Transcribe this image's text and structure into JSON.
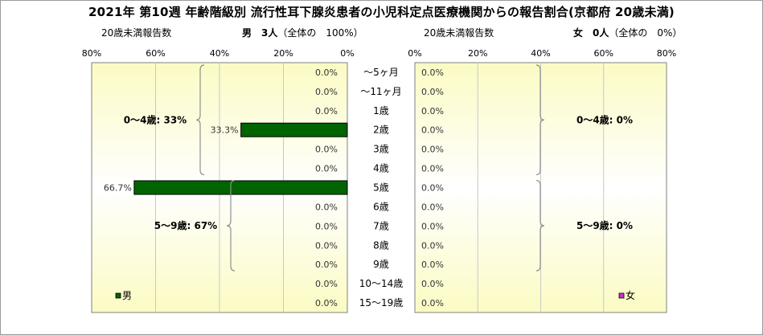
{
  "title": "2021年 第10週 年齢階級別 流行性耳下腺炎患者の小児科定点医療機関からの報告割合(京都府 20歳未満)",
  "male_panel": {
    "subtitle_left": "20歳未満報告数",
    "label": "男　3人",
    "share": "（全体の　100%）"
  },
  "female_panel": {
    "subtitle_left": "20歳未満報告数",
    "label": "女　0人",
    "share": "（全体の　0%）"
  },
  "colors": {
    "male": "#006400",
    "female": "#cc33cc",
    "plot_bg_center": "#ffffff",
    "plot_bg_edge": "#fbfbc4"
  },
  "chart_data": {
    "type": "bar",
    "orientation": "horizontal",
    "categories": [
      "～5ヶ月",
      "～11ヶ月",
      "1歳",
      "2歳",
      "3歳",
      "4歳",
      "5歳",
      "6歳",
      "7歳",
      "8歳",
      "9歳",
      "10～14歳",
      "15～19歳"
    ],
    "x_ticks": [
      "0%",
      "20%",
      "40%",
      "60%",
      "80%"
    ],
    "xlim": [
      0,
      80
    ],
    "unit": "%",
    "series": [
      {
        "name": "男",
        "values": [
          0,
          0,
          0,
          33.3,
          0,
          0,
          66.7,
          0,
          0,
          0,
          0,
          0,
          0
        ],
        "value_labels": [
          "0.0%",
          "0.0%",
          "0.0%",
          "33.3%",
          "0.0%",
          "0.0%",
          "66.7%",
          "0.0%",
          "0.0%",
          "0.0%",
          "0.0%",
          "0.0%",
          "0.0%"
        ]
      },
      {
        "name": "女",
        "values": [
          0,
          0,
          0,
          0,
          0,
          0,
          0,
          0,
          0,
          0,
          0,
          0,
          0
        ],
        "value_labels": [
          "0.0%",
          "0.0%",
          "0.0%",
          "0.0%",
          "0.0%",
          "0.0%",
          "0.0%",
          "0.0%",
          "0.0%",
          "0.0%",
          "0.0%",
          "0.0%",
          "0.0%"
        ]
      }
    ],
    "group_annotations": {
      "male": [
        {
          "text": "0～4歳: 33%",
          "from": 0,
          "to": 5
        },
        {
          "text": "5～9歳: 67%",
          "from": 6,
          "to": 10
        }
      ],
      "female": [
        {
          "text": "0～4歳: 0%",
          "from": 0,
          "to": 5
        },
        {
          "text": "5～9歳: 0%",
          "from": 6,
          "to": 10
        }
      ]
    },
    "grid": true,
    "legend_position": "bottom"
  }
}
